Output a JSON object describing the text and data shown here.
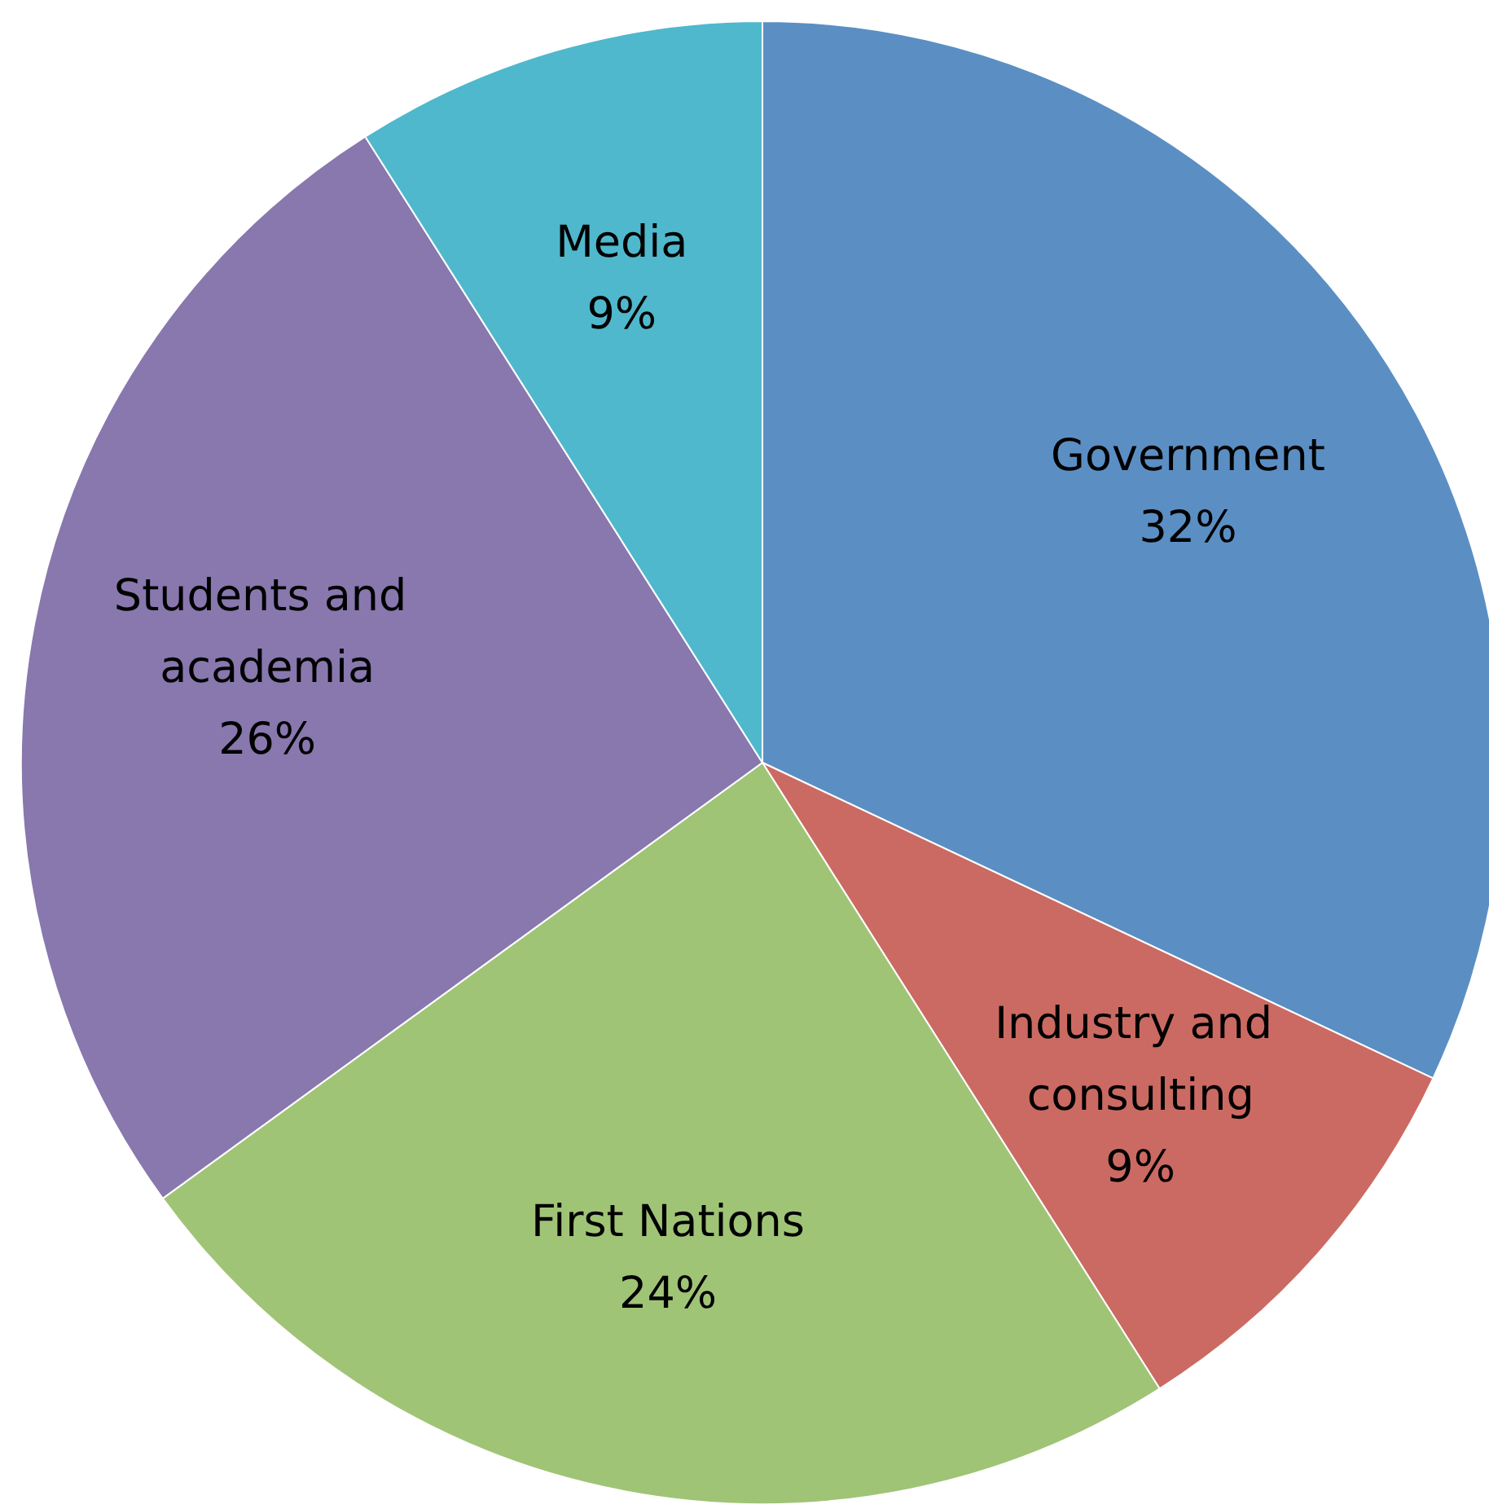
{
  "chart_data": {
    "type": "pie",
    "categories": [
      "Government",
      "Industry and consulting",
      "First Nations",
      "Students and academia",
      "Media"
    ],
    "values": [
      32,
      9,
      24,
      26,
      9
    ],
    "colors": [
      "#5b8fc4",
      "#cb6a62",
      "#a0c476",
      "#8878ae",
      "#4fb8cc"
    ],
    "value_labels": [
      "32%",
      "9%",
      "24%",
      "26%",
      "9%"
    ]
  }
}
